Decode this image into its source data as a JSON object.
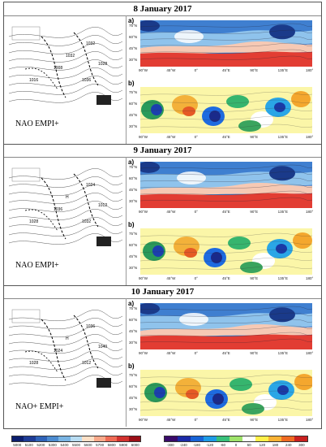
{
  "panels": [
    {
      "date": "8 January 2017",
      "nao_label": "NAO EMPI+",
      "label_a": "a)",
      "label_b": "b)",
      "synop_labels": [
        "1032",
        "1016",
        "1008",
        "1036",
        "1028",
        "1032"
      ]
    },
    {
      "date": "9 January 2017",
      "nao_label": "NAO EMPI+",
      "label_a": "a)",
      "label_b": "b)",
      "synop_labels": [
        "1024",
        "1028",
        "1036",
        "1032",
        "1012",
        "H"
      ]
    },
    {
      "date": "10 January 2017",
      "nao_label": "NAO+ EMPI+",
      "label_a": "a)",
      "label_b": "b)",
      "synop_labels": [
        "1036",
        "1028",
        "1024",
        "1012",
        "1040",
        "H"
      ]
    }
  ],
  "map_axes": {
    "lat_ticks": [
      "75°N",
      "60°N",
      "45°N",
      "30°N"
    ],
    "lon_ticks": [
      "90°W",
      "45°W",
      "0°",
      "45°E",
      "90°E",
      "135°E",
      "180°"
    ]
  },
  "colorbar_left": {
    "ticks": [
      "5000",
      "5100",
      "5200",
      "5300",
      "5400",
      "5500",
      "5600",
      "5700",
      "5800",
      "5900",
      "6000"
    ],
    "colors": [
      "#0b1e6e",
      "#1e3c96",
      "#2f63b8",
      "#4c8bd0",
      "#79b4e3",
      "#b7dcf2",
      "#fde0c6",
      "#f9a98a",
      "#ef6b55",
      "#d2322f",
      "#9b0f17"
    ]
  },
  "colorbar_right": {
    "ticks": [
      "-300",
      "-240",
      "-180",
      "-120",
      "-60",
      "0",
      "60",
      "120",
      "180",
      "240",
      "300"
    ],
    "colors": [
      "#3a0a6a",
      "#1b2aa8",
      "#1763d6",
      "#1e9be6",
      "#38c07a",
      "#9ee36a",
      "#ffffff",
      "#fff04a",
      "#f9b234",
      "#ef6a22",
      "#c9201f"
    ]
  }
}
